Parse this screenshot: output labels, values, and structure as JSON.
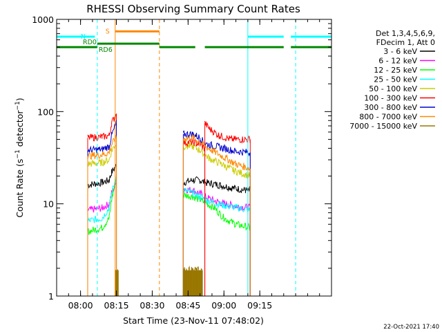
{
  "chart_data": {
    "type": "line",
    "title": "RHESSI Observing Summary Count Rates",
    "xlabel": "Start Time (23-Nov-11 07:48:02)",
    "ylabel": "Count Rate (s⁻¹ detector⁻¹)",
    "ylabel_main": "Count Rate (s",
    "ylabel_sup1": "−1",
    "ylabel_mid": " detector",
    "ylabel_sup2": "−1",
    "ylabel_end": ")",
    "ylog": true,
    "ylim": [
      1,
      1000
    ],
    "xlim_minutes": [
      -10,
      105
    ],
    "xticks": [
      {
        "t": 0,
        "label": "08:00"
      },
      {
        "t": 15,
        "label": "08:15"
      },
      {
        "t": 30,
        "label": "08:30"
      },
      {
        "t": 45,
        "label": "08:45"
      },
      {
        "t": 60,
        "label": "09:00"
      },
      {
        "t": 75,
        "label": "09:15"
      }
    ],
    "yticks": [
      {
        "v": 1,
        "label": "1"
      },
      {
        "v": 10,
        "label": "10"
      },
      {
        "v": 100,
        "label": "100"
      },
      {
        "v": 1000,
        "label": "1000"
      }
    ],
    "legend_header": [
      "Det 1,3,4,5,6,9,",
      "FDecim 1, Att 0"
    ],
    "legend_position": "right",
    "series": [
      {
        "name": "3 - 6 keV",
        "color": "#000000",
        "segments": [
          {
            "x": [
              3,
              9,
              12,
              13,
              15
            ],
            "y": [
              16,
              17,
              18,
              22,
              26
            ]
          },
          {
            "x": [
              43,
              47,
              50,
              52,
              58,
              63,
              69,
              71
            ],
            "y": [
              17,
              18,
              18,
              17,
              16,
              15,
              14,
              14
            ]
          }
        ]
      },
      {
        "name": "6 - 12 keV",
        "color": "#ff00ff",
        "segments": [
          {
            "x": [
              3,
              9,
              12,
              13,
              15
            ],
            "y": [
              8.5,
              9,
              10,
              13,
              17
            ]
          },
          {
            "x": [
              43,
              47,
              50,
              52,
              55,
              60,
              65,
              71
            ],
            "y": [
              14.5,
              14,
              13,
              12,
              11,
              10,
              9.5,
              9
            ]
          }
        ]
      },
      {
        "name": "12 - 25 keV",
        "color": "#00ff00",
        "segments": [
          {
            "x": [
              3,
              9,
              12,
              13,
              15
            ],
            "y": [
              5,
              5.5,
              7,
              11,
              20
            ]
          },
          {
            "x": [
              43,
              47,
              50,
              53,
              56,
              60,
              65,
              71
            ],
            "y": [
              12.5,
              12,
              11,
              10,
              9,
              7,
              6,
              5.5
            ]
          }
        ]
      },
      {
        "name": "25 - 50 keV",
        "color": "#00ffff",
        "segments": [
          {
            "x": [
              3,
              9,
              12,
              13,
              15
            ],
            "y": [
              6.5,
              7,
              9,
              13,
              20
            ]
          },
          {
            "x": [
              43,
              47,
              50,
              53,
              57,
              61,
              66,
              71
            ],
            "y": [
              14,
              13,
              12,
              11,
              10,
              9.5,
              9,
              8.5
            ]
          }
        ]
      },
      {
        "name": "50 - 100 keV",
        "color": "#cccc00",
        "segments": [
          {
            "x": [
              3,
              9,
              12,
              13,
              15
            ],
            "y": [
              27,
              28,
              30,
              38,
              45
            ]
          },
          {
            "x": [
              43,
              47,
              50,
              52,
              54,
              59,
              64,
              71
            ],
            "y": [
              42,
              42,
              38,
              34,
              31,
              27,
              23,
              20
            ]
          }
        ]
      },
      {
        "name": "100 - 300 keV",
        "color": "#ff0000",
        "segments": [
          {
            "x": [
              3,
              9,
              12,
              13,
              15
            ],
            "y": [
              52,
              53,
              55,
              75,
              95
            ]
          },
          {
            "x": [
              43,
              47,
              50,
              52
            ],
            "y": [
              46,
              47,
              44,
              40
            ]
          },
          {
            "x": [
              52,
              54,
              58,
              63,
              71
            ],
            "y": [
              75,
              65,
              55,
              50,
              50
            ]
          }
        ]
      },
      {
        "name": "300 - 800 keV",
        "color": "#0000cc",
        "segments": [
          {
            "x": [
              3,
              9,
              12,
              13,
              15
            ],
            "y": [
              38,
              39,
              42,
              55,
              75
            ]
          },
          {
            "x": [
              43,
              47,
              50,
              52,
              55,
              60,
              65,
              71
            ],
            "y": [
              57,
              57,
              52,
              45,
              43,
              40,
              37,
              36
            ]
          }
        ]
      },
      {
        "name": "800 - 7000 keV",
        "color": "#ff8800",
        "segments": [
          {
            "x": [
              3,
              9,
              12,
              13,
              15
            ],
            "y": [
              33,
              34,
              36,
              44,
              52
            ]
          },
          {
            "x": [
              43,
              47,
              50,
              52,
              55,
              60,
              65,
              71
            ],
            "y": [
              51,
              52,
              47,
              42,
              38,
              32,
              27,
              24
            ]
          }
        ]
      },
      {
        "name": "7000 - 15000 keV",
        "color": "#997700",
        "segments": [
          {
            "x": [
              14.5,
              15.8
            ],
            "y": [
              1.9,
              1.9
            ]
          },
          {
            "x": [
              43,
              51
            ],
            "y": [
              1.9,
              1.9
            ]
          }
        ]
      }
    ],
    "flags": [
      {
        "label": "RD0",
        "color": "#008800",
        "segments": [
          [
            -10,
            7
          ],
          [
            33,
            48
          ],
          [
            52,
            85
          ],
          [
            88,
            105
          ]
        ],
        "y": 500
      },
      {
        "label": "RD6",
        "color": "#008800",
        "segments": [
          [
            7,
            33
          ]
        ],
        "y": 545
      },
      {
        "label": "N",
        "color": "#00ffff",
        "segments": [
          [
            -10,
            6
          ],
          [
            70,
            85
          ],
          [
            88,
            105
          ]
        ],
        "y": 650
      },
      {
        "label": "S",
        "color": "#ff8800",
        "segments": [
          [
            14.5,
            33
          ]
        ],
        "y": 740
      }
    ],
    "vlines": [
      {
        "t": -10,
        "color": "#00ffff",
        "style": "solid"
      },
      {
        "t": 7,
        "color": "#00ffff",
        "style": "dash"
      },
      {
        "t": 14.5,
        "color": "#ff8800",
        "style": "solid"
      },
      {
        "t": 33,
        "color": "#ff8800",
        "style": "dash"
      },
      {
        "t": 70,
        "color": "#00ffff",
        "style": "solid"
      },
      {
        "t": 90,
        "color": "#00ffff",
        "style": "dash"
      }
    ],
    "timestamp": "22-Oct-2021 17:40"
  }
}
